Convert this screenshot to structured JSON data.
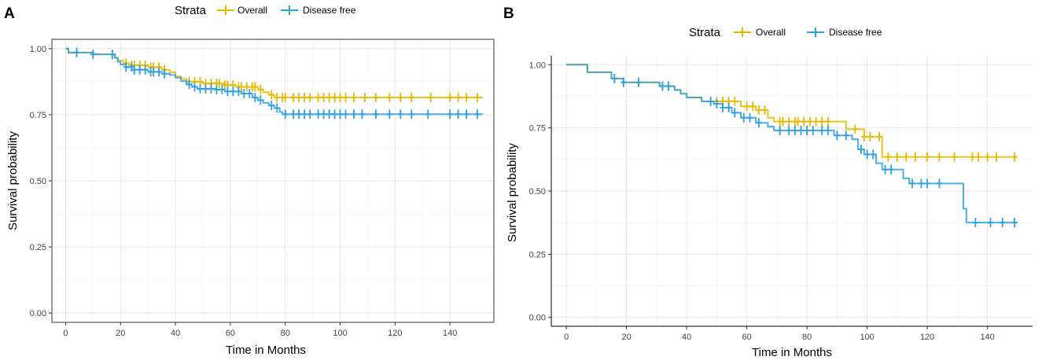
{
  "chart_data": [
    {
      "panel": "A",
      "type": "line",
      "subtype": "kaplan-meier",
      "title": "",
      "xlabel": "Time in Months",
      "ylabel": "Survival probability",
      "xlim": [
        -5,
        156
      ],
      "ylim": [
        -0.035,
        1.035
      ],
      "xticks": [
        0,
        20,
        40,
        60,
        80,
        100,
        120,
        140
      ],
      "yticks": [
        0.0,
        0.25,
        0.5,
        0.75,
        1.0
      ],
      "ytick_labels": [
        "0.00",
        "0.25",
        "0.50",
        "0.75",
        "1.00"
      ],
      "grid": true,
      "legend": {
        "title": "Strata",
        "position": "top"
      },
      "series": [
        {
          "name": "Overall",
          "color": "#E7B800",
          "steps": [
            [
              0,
              1.0
            ],
            [
              1,
              0.985
            ],
            [
              10,
              0.978
            ],
            [
              18,
              0.965
            ],
            [
              19,
              0.955
            ],
            [
              21,
              0.945
            ],
            [
              23,
              0.937
            ],
            [
              30,
              0.93
            ],
            [
              35,
              0.92
            ],
            [
              38,
              0.91
            ],
            [
              40,
              0.895
            ],
            [
              42,
              0.885
            ],
            [
              44,
              0.875
            ],
            [
              50,
              0.868
            ],
            [
              58,
              0.862
            ],
            [
              62,
              0.855
            ],
            [
              70,
              0.845
            ],
            [
              72,
              0.835
            ],
            [
              74,
              0.825
            ],
            [
              76,
              0.815
            ],
            [
              140,
              0.815
            ],
            [
              152,
              0.815
            ]
          ],
          "censor": [
            4,
            17,
            22,
            24,
            25,
            27,
            29,
            31,
            32,
            34,
            36,
            45,
            47,
            49,
            51,
            53,
            55,
            56,
            58,
            59,
            61,
            63,
            64,
            66,
            68,
            69,
            71,
            75,
            77,
            79,
            80,
            83,
            85,
            87,
            89,
            92,
            94,
            96,
            98,
            100,
            102,
            105,
            109,
            113,
            118,
            122,
            126,
            133,
            140,
            143,
            146,
            150
          ]
        },
        {
          "name": "Disease free",
          "color": "#2E9FDF",
          "steps": [
            [
              0,
              1.0
            ],
            [
              1,
              0.985
            ],
            [
              10,
              0.978
            ],
            [
              18,
              0.965
            ],
            [
              19,
              0.95
            ],
            [
              20,
              0.94
            ],
            [
              22,
              0.93
            ],
            [
              25,
              0.92
            ],
            [
              30,
              0.912
            ],
            [
              35,
              0.905
            ],
            [
              38,
              0.9
            ],
            [
              40,
              0.89
            ],
            [
              42,
              0.877
            ],
            [
              44,
              0.865
            ],
            [
              46,
              0.855
            ],
            [
              48,
              0.848
            ],
            [
              55,
              0.845
            ],
            [
              58,
              0.838
            ],
            [
              64,
              0.83
            ],
            [
              68,
              0.815
            ],
            [
              70,
              0.805
            ],
            [
              72,
              0.795
            ],
            [
              74,
              0.785
            ],
            [
              76,
              0.775
            ],
            [
              78,
              0.76
            ],
            [
              79,
              0.752
            ],
            [
              152,
              0.752
            ]
          ],
          "censor": [
            4,
            10,
            17,
            22,
            24,
            25,
            27,
            29,
            31,
            32,
            34,
            36,
            45,
            47,
            49,
            51,
            53,
            55,
            57,
            59,
            61,
            63,
            65,
            67,
            69,
            71,
            75,
            77,
            80,
            83,
            85,
            87,
            89,
            92,
            94,
            96,
            98,
            100,
            102,
            105,
            108,
            113,
            118,
            122,
            126,
            132,
            140,
            143,
            146,
            150
          ]
        }
      ]
    },
    {
      "panel": "B",
      "type": "line",
      "subtype": "kaplan-meier",
      "title": "",
      "xlabel": "Time in Months",
      "ylabel": "Survival probability",
      "xlim": [
        -5,
        155
      ],
      "ylim": [
        -0.035,
        1.035
      ],
      "xticks": [
        0,
        20,
        40,
        60,
        80,
        100,
        120,
        140
      ],
      "yticks": [
        0.0,
        0.25,
        0.5,
        0.75,
        1.0
      ],
      "ytick_labels": [
        "0.00",
        "0.25",
        "0.50",
        "0.75",
        "1.00"
      ],
      "grid": true,
      "legend": {
        "title": "Strata",
        "position": "top"
      },
      "series": [
        {
          "name": "Overall",
          "color": "#E7B800",
          "steps": [
            [
              0,
              1.0
            ],
            [
              7,
              0.97
            ],
            [
              15,
              0.945
            ],
            [
              19,
              0.93
            ],
            [
              31,
              0.915
            ],
            [
              36,
              0.9
            ],
            [
              38,
              0.885
            ],
            [
              40,
              0.87
            ],
            [
              45,
              0.855
            ],
            [
              58,
              0.835
            ],
            [
              63,
              0.82
            ],
            [
              67,
              0.79
            ],
            [
              69,
              0.775
            ],
            [
              93,
              0.745
            ],
            [
              99,
              0.715
            ],
            [
              105,
              0.635
            ],
            [
              150,
              0.635
            ]
          ],
          "censor": [
            16,
            19,
            24,
            32,
            34,
            50,
            52,
            54,
            56,
            60,
            62,
            64,
            66,
            71,
            72,
            74,
            76,
            77,
            79,
            81,
            83,
            85,
            87,
            96,
            99,
            101,
            104,
            107,
            110,
            113,
            116,
            120,
            124,
            129,
            135,
            137,
            140,
            143,
            149
          ]
        },
        {
          "name": "Disease free",
          "color": "#2E9FDF",
          "steps": [
            [
              0,
              1.0
            ],
            [
              7,
              0.97
            ],
            [
              15,
              0.945
            ],
            [
              19,
              0.93
            ],
            [
              31,
              0.915
            ],
            [
              36,
              0.9
            ],
            [
              38,
              0.885
            ],
            [
              40,
              0.87
            ],
            [
              45,
              0.855
            ],
            [
              49,
              0.845
            ],
            [
              52,
              0.83
            ],
            [
              55,
              0.81
            ],
            [
              58,
              0.79
            ],
            [
              63,
              0.77
            ],
            [
              67,
              0.755
            ],
            [
              69,
              0.74
            ],
            [
              89,
              0.72
            ],
            [
              95,
              0.705
            ],
            [
              97,
              0.665
            ],
            [
              99,
              0.645
            ],
            [
              103,
              0.61
            ],
            [
              105,
              0.585
            ],
            [
              112,
              0.55
            ],
            [
              114,
              0.53
            ],
            [
              132,
              0.43
            ],
            [
              133,
              0.375
            ],
            [
              150,
              0.375
            ]
          ],
          "censor": [
            16,
            19,
            24,
            32,
            34,
            48,
            50,
            52,
            54,
            56,
            59,
            61,
            64,
            71,
            74,
            76,
            78,
            80,
            82,
            85,
            87,
            90,
            93,
            98,
            100,
            102,
            106,
            108,
            115,
            118,
            120,
            124,
            136,
            141,
            145,
            149
          ]
        }
      ]
    }
  ]
}
